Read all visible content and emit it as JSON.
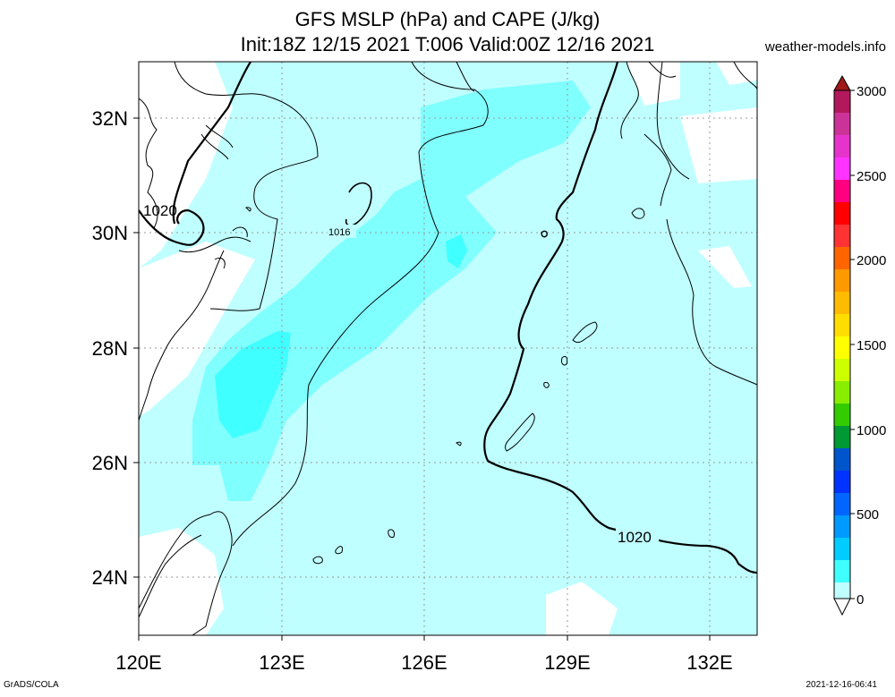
{
  "header": {
    "title_line1": "GFS MSLP (hPa) and CAPE (J/kg)",
    "title_line2": "Init:18Z 12/15 2021 T:006 Valid:00Z 12/16 2021",
    "site": "weather-models.info"
  },
  "footer": {
    "left": "GrADS/COLA",
    "right": "2021-12-16-06:41"
  },
  "map": {
    "lon_labels": [
      "120E",
      "123E",
      "126E",
      "129E",
      "132E"
    ],
    "lat_labels": [
      "32N",
      "30N",
      "28N",
      "26N",
      "24N"
    ],
    "isobar_labels": [
      "1020",
      "1016",
      "1020"
    ]
  },
  "colorbar": {
    "labels": [
      "3000",
      "2500",
      "2000",
      "1500",
      "1000",
      "500",
      "0"
    ]
  },
  "colors": {
    "cape_low": "#c0ffff",
    "cape_mid": "#80ffff",
    "cape_high": "#40ffff"
  }
}
